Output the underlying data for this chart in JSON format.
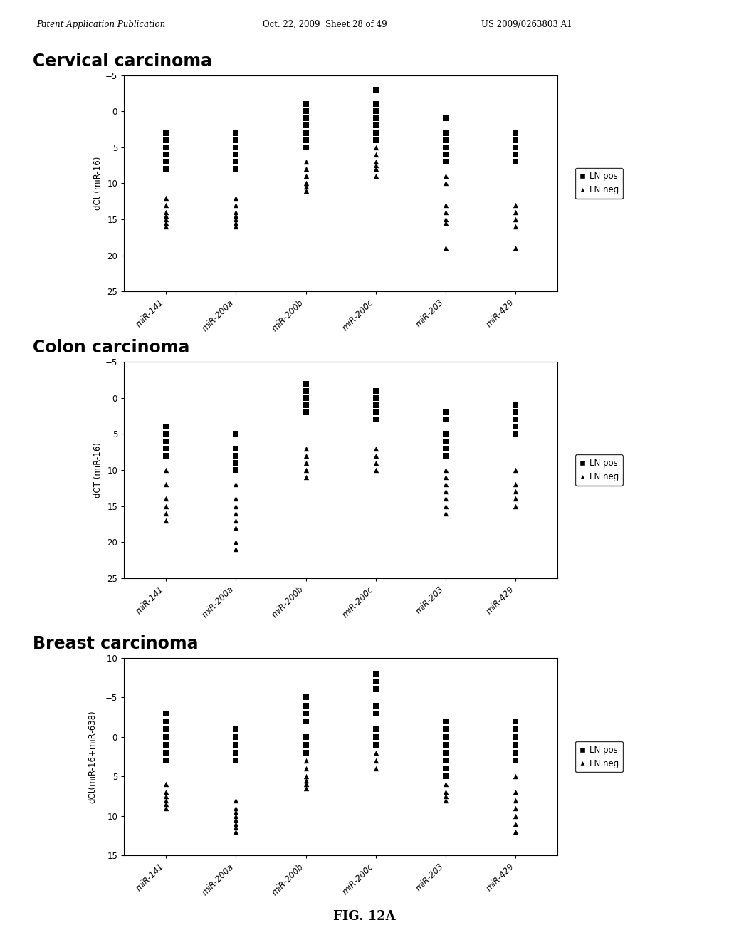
{
  "header_left": "Patent Application Publication",
  "header_mid": "Oct. 22, 2009  Sheet 28 of 49",
  "header_right": "US 2009/0263803 A1",
  "fig_label": "FIG. 12A",
  "plots": [
    {
      "title": "Cervical carcinoma",
      "ylabel": "dCt (miR-16)",
      "ylim": [
        25,
        -5
      ],
      "yticks": [
        -5,
        0,
        5,
        10,
        15,
        20,
        25
      ],
      "categories": [
        "miR-141",
        "miR-200a",
        "miR-200b",
        "miR-200c",
        "miR-203",
        "miR-429"
      ],
      "ln_pos": [
        [
          3,
          4,
          5,
          6,
          7,
          8
        ],
        [
          3,
          4,
          5,
          6,
          7,
          8
        ],
        [
          -1,
          0,
          1,
          2,
          3,
          4,
          5
        ],
        [
          -3,
          -1,
          0,
          1,
          2,
          3,
          4
        ],
        [
          1,
          3,
          4,
          5,
          6,
          7
        ],
        [
          3,
          4,
          5,
          6,
          7
        ]
      ],
      "ln_neg": [
        [
          12,
          13,
          14,
          14.5,
          15,
          15.5,
          16
        ],
        [
          12,
          13,
          14,
          14.5,
          15,
          15.5,
          16
        ],
        [
          7,
          8,
          9,
          10,
          10.5,
          11
        ],
        [
          5,
          6,
          7,
          7.5,
          8,
          9
        ],
        [
          9,
          10,
          13,
          14,
          15,
          15.5,
          19
        ],
        [
          13,
          14,
          15,
          16,
          19
        ]
      ]
    },
    {
      "title": "Colon carcinoma",
      "ylabel": "dCT (miR-16)",
      "ylim": [
        25,
        -5
      ],
      "yticks": [
        -5,
        0,
        5,
        10,
        15,
        20,
        25
      ],
      "categories": [
        "miR-141",
        "miR-200a",
        "miR-200b",
        "miR-200c",
        "miR-203",
        "miR-429"
      ],
      "ln_pos": [
        [
          4,
          5,
          6,
          7,
          8
        ],
        [
          5,
          7,
          8,
          9,
          10
        ],
        [
          -2,
          -1,
          0,
          1,
          2
        ],
        [
          -1,
          0,
          1,
          2,
          3
        ],
        [
          2,
          3,
          5,
          6,
          7,
          8
        ],
        [
          1,
          2,
          3,
          4,
          5
        ]
      ],
      "ln_neg": [
        [
          10,
          12,
          14,
          15,
          16,
          17
        ],
        [
          12,
          14,
          15,
          16,
          17,
          18,
          20,
          21
        ],
        [
          7,
          8,
          9,
          10,
          11
        ],
        [
          7,
          8,
          9,
          10
        ],
        [
          10,
          11,
          12,
          13,
          14,
          15,
          16
        ],
        [
          10,
          12,
          13,
          14,
          15
        ]
      ]
    },
    {
      "title": "Breast carcinoma",
      "ylabel": "dCt(miR-16+miR-638)",
      "ylim": [
        15,
        -10
      ],
      "yticks": [
        -10,
        -5,
        0,
        5,
        10,
        15
      ],
      "categories": [
        "miR-141",
        "miR-200a",
        "miR-200b",
        "miR-200c",
        "miR-203",
        "miR-429"
      ],
      "ln_pos": [
        [
          -3,
          -2,
          -1,
          0,
          1,
          2,
          3
        ],
        [
          -1,
          0,
          1,
          2,
          3
        ],
        [
          -5,
          -4,
          -3,
          -2,
          0,
          1,
          2
        ],
        [
          -8,
          -7,
          -6,
          -4,
          -3,
          -1,
          0,
          1
        ],
        [
          -2,
          -1,
          0,
          1,
          2,
          3,
          4,
          5
        ],
        [
          -2,
          -1,
          0,
          1,
          2,
          3
        ]
      ],
      "ln_neg": [
        [
          6,
          7,
          7.5,
          8,
          8.5,
          9
        ],
        [
          8,
          9,
          9.5,
          10,
          10.5,
          11,
          11.5,
          12
        ],
        [
          3,
          4,
          5,
          5.5,
          6,
          6.5
        ],
        [
          1,
          2,
          3,
          4
        ],
        [
          6,
          7,
          7.5,
          8
        ],
        [
          5,
          7,
          8,
          9,
          10,
          11,
          12
        ]
      ]
    }
  ]
}
